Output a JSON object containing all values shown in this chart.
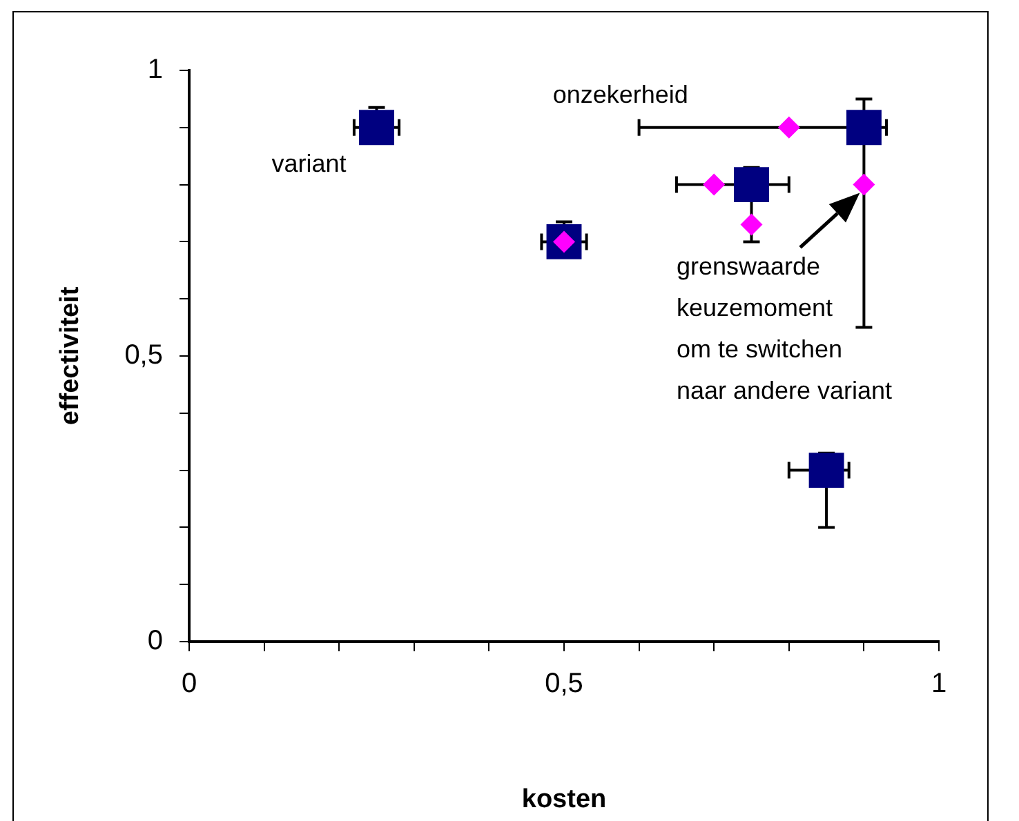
{
  "chart_data": {
    "type": "scatter",
    "xlabel": "kosten",
    "ylabel": "effectiviteit",
    "xlim": [
      0,
      1
    ],
    "ylim": [
      0,
      1
    ],
    "xticks": [
      0,
      {
        "value": 0.1,
        "label": null
      },
      {
        "value": 0.2,
        "label": null
      },
      {
        "value": 0.3,
        "label": null
      },
      {
        "value": 0.4,
        "label": null
      },
      {
        "value": 0.5,
        "label": "0,5"
      },
      {
        "value": 0.6,
        "label": null
      },
      {
        "value": 0.7,
        "label": null
      },
      {
        "value": 0.8,
        "label": null
      },
      {
        "value": 0.9,
        "label": null
      },
      1
    ],
    "yticks": [
      0,
      {
        "value": 0.1,
        "label": null
      },
      {
        "value": 0.2,
        "label": null
      },
      {
        "value": 0.3,
        "label": null
      },
      {
        "value": 0.4,
        "label": null
      },
      {
        "value": 0.5,
        "label": "0,5"
      },
      {
        "value": 0.6,
        "label": null
      },
      {
        "value": 0.7,
        "label": null
      },
      {
        "value": 0.8,
        "label": null
      },
      {
        "value": 0.9,
        "label": null
      },
      1
    ],
    "grid": false,
    "legend": false,
    "series": [
      {
        "color": "#000080",
        "marker": "square",
        "x": [
          0.25,
          0.5,
          0.75,
          0.9,
          0.85
        ],
        "values": [
          0.9,
          0.7,
          0.8,
          0.9,
          0.3
        ],
        "xerrors": [
          [
            0.22,
            0.28
          ],
          [
            0.47,
            0.53
          ],
          [
            0.65,
            0.8
          ],
          [
            0.6,
            0.93
          ],
          [
            0.8,
            0.88
          ]
        ],
        "errors": [
          [
            0.9,
            0.935
          ],
          [
            0.7,
            0.735
          ],
          [
            0.7,
            0.83
          ],
          [
            0.55,
            0.95
          ],
          [
            0.2,
            0.33
          ]
        ]
      },
      {
        "color": "#ff00ff",
        "marker": "diamond",
        "x": [
          0.5,
          0.7,
          0.75,
          0.8,
          0.9
        ],
        "values": [
          0.7,
          0.8,
          0.73,
          0.9,
          0.8
        ]
      }
    ],
    "annotations": [
      {
        "text": "onzekerheid",
        "x": 0.6,
        "y": 0.9
      },
      {
        "text": "variant",
        "x": 0.25,
        "y": 0.9
      },
      {
        "text": "grenswaarde\nkeuzemoment\nom te switchen\nnaar andere variant",
        "x": 0.9,
        "y": 0.8
      }
    ]
  }
}
